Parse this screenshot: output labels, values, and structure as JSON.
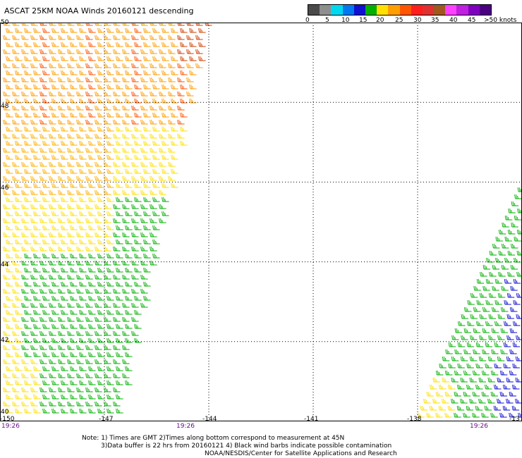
{
  "title": "ASCAT 25KM NOAA Winds 20160121 descending",
  "scale": {
    "labels": [
      "0",
      "5",
      "10",
      "15",
      "20",
      "25",
      "30",
      "35",
      "40",
      "45",
      ">50 knots"
    ],
    "colors": [
      "#4a4a4a",
      "#8e8e8e",
      "#00d8f0",
      "#0078f0",
      "#1010d0",
      "#00b000",
      "#ffe000",
      "#ff9e00",
      "#ff5500",
      "#ff1e1e",
      "#e03030",
      "#a05820",
      "#ff40ff",
      "#c020e0",
      "#8000c0",
      "#4b0082"
    ]
  },
  "axes": {
    "y_ticks": [
      "50",
      "48",
      "46",
      "44",
      "42",
      "40"
    ],
    "x_ticks": [
      "-150",
      "-147",
      "-144",
      "-141",
      "-138",
      "-13"
    ],
    "times": [
      "19:26",
      "19:26",
      "19:26"
    ]
  },
  "map": {
    "lon_range": [
      -150,
      -135
    ],
    "lat_range": [
      40,
      50
    ],
    "grid_lons": [
      -147,
      -144,
      -141,
      -138
    ],
    "grid_lats": [
      42,
      44,
      46,
      48
    ],
    "swaths": [
      {
        "name": "west-pass",
        "dominant_colors": [
          "#ff9e00",
          "#ffe000",
          "#00b000"
        ]
      },
      {
        "name": "east-pass",
        "dominant_colors": [
          "#00b000",
          "#1010d0",
          "#ffe000"
        ]
      }
    ]
  },
  "notes": [
    "Note: 1) Times are GMT 2)Times along bottom correspond to measurement at 45N",
    "3)Data buffer is 22 hrs from 20160121 4) Black wind barbs indicate possible contamination",
    "NOAA/NESDIS/Center for Satellite Applications and Research"
  ]
}
